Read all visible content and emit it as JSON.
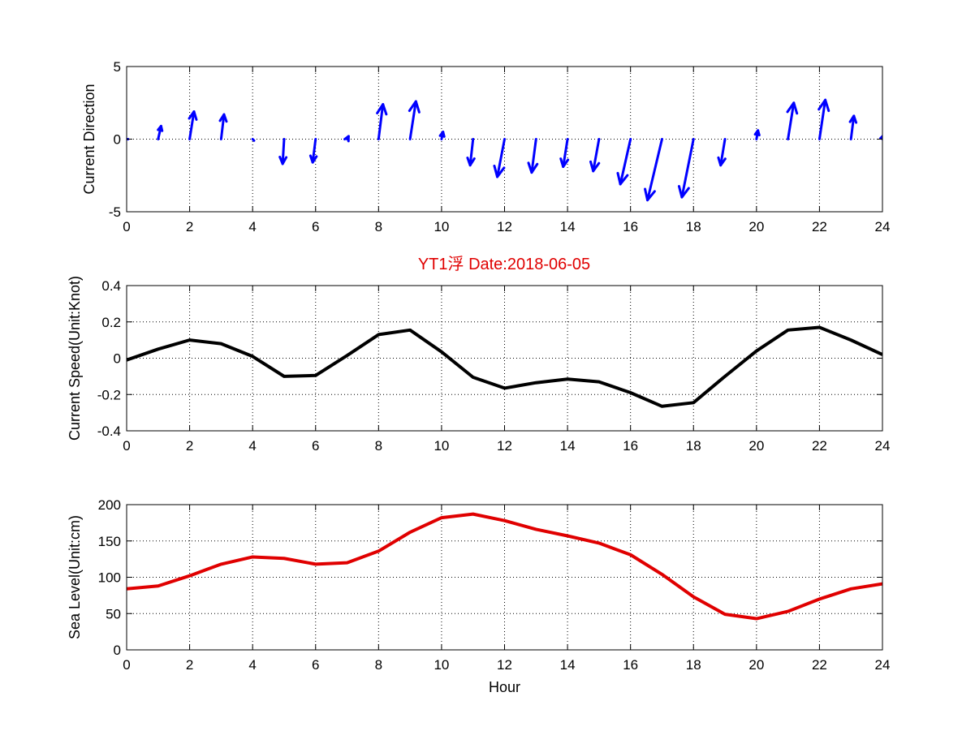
{
  "title": "YT1浮    Date:2018-06-05",
  "colors": {
    "direction": "#0000ff",
    "speed": "#000000",
    "sea_level": "#e00000",
    "title": "#e00000"
  },
  "chart_data": [
    {
      "type": "quiver",
      "ylabel": "Current Direction",
      "xlabel": "",
      "xlim": [
        0,
        24
      ],
      "ylim": [
        -5,
        5
      ],
      "xticks": [
        0,
        2,
        4,
        6,
        8,
        10,
        12,
        14,
        16,
        18,
        20,
        22,
        24
      ],
      "yticks": [
        -5,
        0,
        5
      ],
      "grid": true,
      "x": [
        0,
        1,
        2,
        3,
        4,
        5,
        6,
        7,
        8,
        9,
        10,
        11,
        12,
        13,
        14,
        15,
        16,
        17,
        18,
        19,
        20,
        21,
        22,
        23,
        24
      ],
      "u": [
        0.1,
        0.2,
        0.3,
        0.2,
        0.1,
        -0.1,
        -0.2,
        0.1,
        0.3,
        0.4,
        0.1,
        -0.2,
        -0.5,
        -0.3,
        -0.3,
        -0.4,
        -0.7,
        -1.0,
        -0.8,
        -0.3,
        0.1,
        0.4,
        0.4,
        0.2,
        0.1
      ],
      "v": [
        0.0,
        0.9,
        1.9,
        1.7,
        -0.1,
        -1.7,
        -1.6,
        0.2,
        2.4,
        2.6,
        0.5,
        -1.8,
        -2.6,
        -2.3,
        -1.9,
        -2.2,
        -3.1,
        -4.2,
        -4.0,
        -1.8,
        0.6,
        2.5,
        2.7,
        1.6,
        0.3
      ]
    },
    {
      "type": "line",
      "title": "YT1浮    Date:2018-06-05",
      "ylabel": "Current Speed(Unit:Knot)",
      "xlabel": "",
      "xlim": [
        0,
        24
      ],
      "ylim": [
        -0.4,
        0.4
      ],
      "xticks": [
        0,
        2,
        4,
        6,
        8,
        10,
        12,
        14,
        16,
        18,
        20,
        22,
        24
      ],
      "yticks": [
        -0.4,
        -0.2,
        0,
        0.2,
        0.4
      ],
      "ytick_labels": [
        "-0.4",
        "-0.2",
        "0",
        "0.2",
        "0.4"
      ],
      "grid": true,
      "x": [
        0,
        1,
        2,
        3,
        4,
        5,
        6,
        7,
        8,
        9,
        10,
        11,
        12,
        13,
        14,
        15,
        16,
        17,
        18,
        19,
        20,
        21,
        22,
        23,
        24
      ],
      "y": [
        -0.01,
        0.05,
        0.1,
        0.08,
        0.01,
        -0.1,
        -0.095,
        0.015,
        0.13,
        0.155,
        0.035,
        -0.105,
        -0.165,
        -0.135,
        -0.115,
        -0.13,
        -0.19,
        -0.265,
        -0.245,
        -0.1,
        0.04,
        0.155,
        0.17,
        0.1,
        0.02
      ]
    },
    {
      "type": "line",
      "ylabel": "Sea Level(Unit:cm)",
      "xlabel": "Hour",
      "xlim": [
        0,
        24
      ],
      "ylim": [
        0,
        200
      ],
      "xticks": [
        0,
        2,
        4,
        6,
        8,
        10,
        12,
        14,
        16,
        18,
        20,
        22,
        24
      ],
      "yticks": [
        0,
        50,
        100,
        150,
        200
      ],
      "grid": true,
      "x": [
        0,
        1,
        2,
        3,
        4,
        5,
        6,
        7,
        8,
        9,
        10,
        11,
        12,
        13,
        14,
        15,
        16,
        17,
        18,
        19,
        20,
        21,
        22,
        23,
        24
      ],
      "y": [
        84,
        88,
        102,
        118,
        128,
        126,
        118,
        120,
        136,
        162,
        182,
        187,
        178,
        166,
        157,
        147,
        131,
        104,
        73,
        49,
        43,
        53,
        70,
        84,
        91
      ]
    }
  ]
}
